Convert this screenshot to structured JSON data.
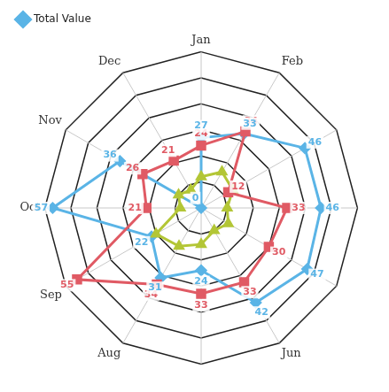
{
  "chart_data": {
    "type": "radar",
    "categories": [
      "Jan",
      "Feb",
      null,
      null,
      null,
      "Jun",
      null,
      "Aug",
      "Sep",
      "Oct",
      "Nov",
      "Dec"
    ],
    "ylim": [
      0,
      60
    ],
    "yticks": [
      0,
      10,
      20,
      30,
      40,
      50,
      60
    ],
    "grid": true,
    "tick_labels": "x",
    "legend": "top-left",
    "series": [
      {
        "color": "#e05a64",
        "marker": "square",
        "line_style": "solid",
        "data_labels": true,
        "values": [
          24,
          34,
          12,
          33,
          30,
          33,
          33,
          34,
          55,
          21,
          26,
          21
        ]
      },
      {
        "color": "#b3c636",
        "marker": "triangle",
        "line_style": "solid",
        "data_labels": false,
        "values": [
          12,
          16,
          14,
          10,
          12,
          10,
          14,
          17,
          20,
          8,
          10,
          8
        ]
      },
      {
        "name": "Total Value",
        "color": "#5ab4e6",
        "marker": "diamond",
        "line_style": "solid",
        "data_labels": true,
        "values": [
          27,
          33,
          46,
          46,
          47,
          42,
          24,
          31,
          22,
          57,
          36,
          0
        ]
      }
    ]
  }
}
